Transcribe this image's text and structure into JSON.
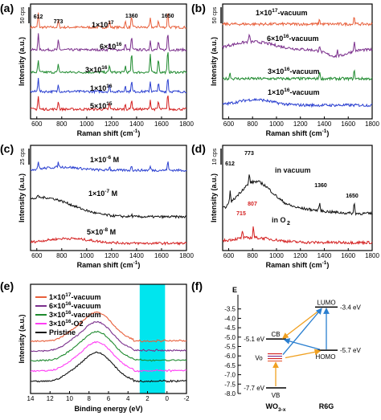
{
  "chart_data": [
    {
      "panel": "(a)",
      "type": "line",
      "xlabel": "Raman shift (cm-1)",
      "ylabel": "Intensity (a.u.)",
      "scale_bar": "50 cps",
      "xlim": [
        550,
        1800
      ],
      "x_ticks": [
        "600",
        "800",
        "1000",
        "1200",
        "1400",
        "1600",
        "1800"
      ],
      "peak_labels": [
        {
          "text": "612",
          "x": 612
        },
        {
          "text": "773",
          "x": 773
        },
        {
          "text": "1360",
          "x": 1360
        },
        {
          "text": "1650",
          "x": 1650
        }
      ],
      "series": [
        {
          "name": "1×10^17",
          "color": "#e8603c",
          "offset": 4,
          "peaks": [
            [
              612,
              2.0
            ],
            [
              773,
              1.0
            ],
            [
              1183,
              0.9
            ],
            [
              1310,
              0.8
            ],
            [
              1360,
              1.6
            ],
            [
              1510,
              1.2
            ],
            [
              1575,
              1.0
            ],
            [
              1650,
              2.2
            ]
          ]
        },
        {
          "name": "6×10^16",
          "color": "#7b2f8c",
          "offset": 3,
          "peaks": [
            [
              612,
              2.2
            ],
            [
              773,
              1.3
            ],
            [
              1183,
              0.9
            ],
            [
              1310,
              0.9
            ],
            [
              1360,
              1.8
            ],
            [
              1510,
              1.3
            ],
            [
              1575,
              1.2
            ],
            [
              1650,
              2.4
            ]
          ]
        },
        {
          "name": "3×10^16",
          "color": "#1e8a2e",
          "offset": 2,
          "peaks": [
            [
              612,
              1.6
            ],
            [
              773,
              1.1
            ],
            [
              1183,
              1.0
            ],
            [
              1310,
              0.9
            ],
            [
              1360,
              2.6
            ],
            [
              1510,
              2.4
            ],
            [
              1575,
              2.0
            ],
            [
              1650,
              3.0
            ]
          ]
        },
        {
          "name": "1×10^16",
          "color": "#2a3fd0",
          "offset": 1,
          "peaks": [
            [
              612,
              2.0
            ],
            [
              773,
              1.0
            ],
            [
              1183,
              0.9
            ],
            [
              1310,
              0.9
            ],
            [
              1360,
              1.5
            ],
            [
              1510,
              1.4
            ],
            [
              1575,
              1.2
            ],
            [
              1650,
              2.0
            ]
          ]
        },
        {
          "name": "5×10^15",
          "color": "#d42020",
          "offset": 0,
          "peaks": [
            [
              612,
              1.8
            ],
            [
              773,
              1.2
            ],
            [
              1183,
              0.8
            ],
            [
              1310,
              0.7
            ],
            [
              1360,
              1.4
            ],
            [
              1510,
              1.3
            ],
            [
              1575,
              1.1
            ],
            [
              1650,
              2.2
            ]
          ]
        }
      ]
    },
    {
      "panel": "(b)",
      "type": "line",
      "xlabel": "Raman shift (cm-1)",
      "ylabel": "Intensity (a.u.)",
      "scale_bar": "50 cps",
      "xlim": [
        550,
        1800
      ],
      "x_ticks": [
        "600",
        "800",
        "1000",
        "1200",
        "1400",
        "1600",
        "1800"
      ],
      "series": [
        {
          "name": "1×10^17-vacuum",
          "color": "#e8603c",
          "offset": 3
        },
        {
          "name": "6×10^16-vacuum",
          "color": "#7b2f8c",
          "offset": 2
        },
        {
          "name": "3×10^16-vacuum",
          "color": "#1e8a2e",
          "offset": 1
        },
        {
          "name": "1×10^16-vacuum",
          "color": "#2a3fd0",
          "offset": 0
        }
      ]
    },
    {
      "panel": "(c)",
      "type": "line",
      "xlabel": "Raman shift (cm-1)",
      "ylabel": "Intensity (a.u.)",
      "scale_bar": "25 cps",
      "xlim": [
        550,
        1800
      ],
      "x_ticks": [
        "600",
        "800",
        "1000",
        "1200",
        "1400",
        "1600",
        "1800"
      ],
      "series": [
        {
          "name": "1×10^-6 M",
          "color": "#2a3fd0",
          "offset": 2
        },
        {
          "name": "1×10^-7 M",
          "color": "#111111",
          "offset": 1
        },
        {
          "name": "5×10^-8 M",
          "color": "#d42020",
          "offset": 0
        }
      ]
    },
    {
      "panel": "(d)",
      "type": "line",
      "xlabel": "Raman shift (cm-1)",
      "ylabel": "Intensity (a.u.)",
      "scale_bar": "10 cps",
      "xlim": [
        550,
        1800
      ],
      "x_ticks": [
        "600",
        "800",
        "1000",
        "1200",
        "1400",
        "1600",
        "1800"
      ],
      "peak_labels": [
        {
          "text": "612",
          "x": 612
        },
        {
          "text": "773",
          "x": 773
        },
        {
          "text": "1360",
          "x": 1360
        },
        {
          "text": "1650",
          "x": 1650
        },
        {
          "text": "715",
          "x": 715
        },
        {
          "text": "807",
          "x": 807
        }
      ],
      "series": [
        {
          "name": "in vacuum",
          "color": "#111111",
          "offset": 1
        },
        {
          "name": "in O2",
          "color": "#d42020",
          "offset": 0
        }
      ]
    },
    {
      "panel": "(e)",
      "type": "line",
      "xlabel": "Binding energy (eV)",
      "ylabel": "Intensity (a.u.)",
      "xlim": [
        14,
        -2
      ],
      "x_ticks": [
        "14",
        "12",
        "10",
        "8",
        "6",
        "4",
        "2",
        "0",
        "-2"
      ],
      "highlight_band": [
        2.8,
        0.2
      ],
      "highlight_color": "#00e5ee",
      "series": [
        {
          "name": "1×10^17-vacuum",
          "color": "#e8603c",
          "offset": 4
        },
        {
          "name": "6×10^16-vacuum",
          "color": "#7b2f8c",
          "offset": 3
        },
        {
          "name": "3×10^16-vacuum",
          "color": "#1e8a2e",
          "offset": 2
        },
        {
          "name": "3×10^16-O2",
          "color": "#ff3df5",
          "offset": 1
        },
        {
          "name": "Pristine",
          "color": "#111111",
          "offset": 0
        }
      ]
    },
    {
      "panel": "(f)",
      "type": "diagram",
      "axis_title": "E",
      "ylim": [
        -3,
        -8
      ],
      "y_ticks": [
        "-3.5",
        "-4.0",
        "-4.5",
        "-5.0",
        "-5.5",
        "-6.0",
        "-6.5",
        "-7.0",
        "-7.5",
        "-8.0"
      ],
      "levels": [
        {
          "label": "CB",
          "energy_label": "-5.1 eV",
          "value": -5.1
        },
        {
          "label": "Vo",
          "value": -6.1
        },
        {
          "label": "VB",
          "energy_label": "-7.7 eV",
          "value": -7.7
        },
        {
          "label": "LUMO",
          "energy_label": "-3.4 eV",
          "value": -3.4
        },
        {
          "label": "HOMO",
          "energy_label": "-5.7 eV",
          "value": -5.7
        }
      ],
      "x_labels": [
        "WO3-x",
        "R6G"
      ]
    }
  ]
}
